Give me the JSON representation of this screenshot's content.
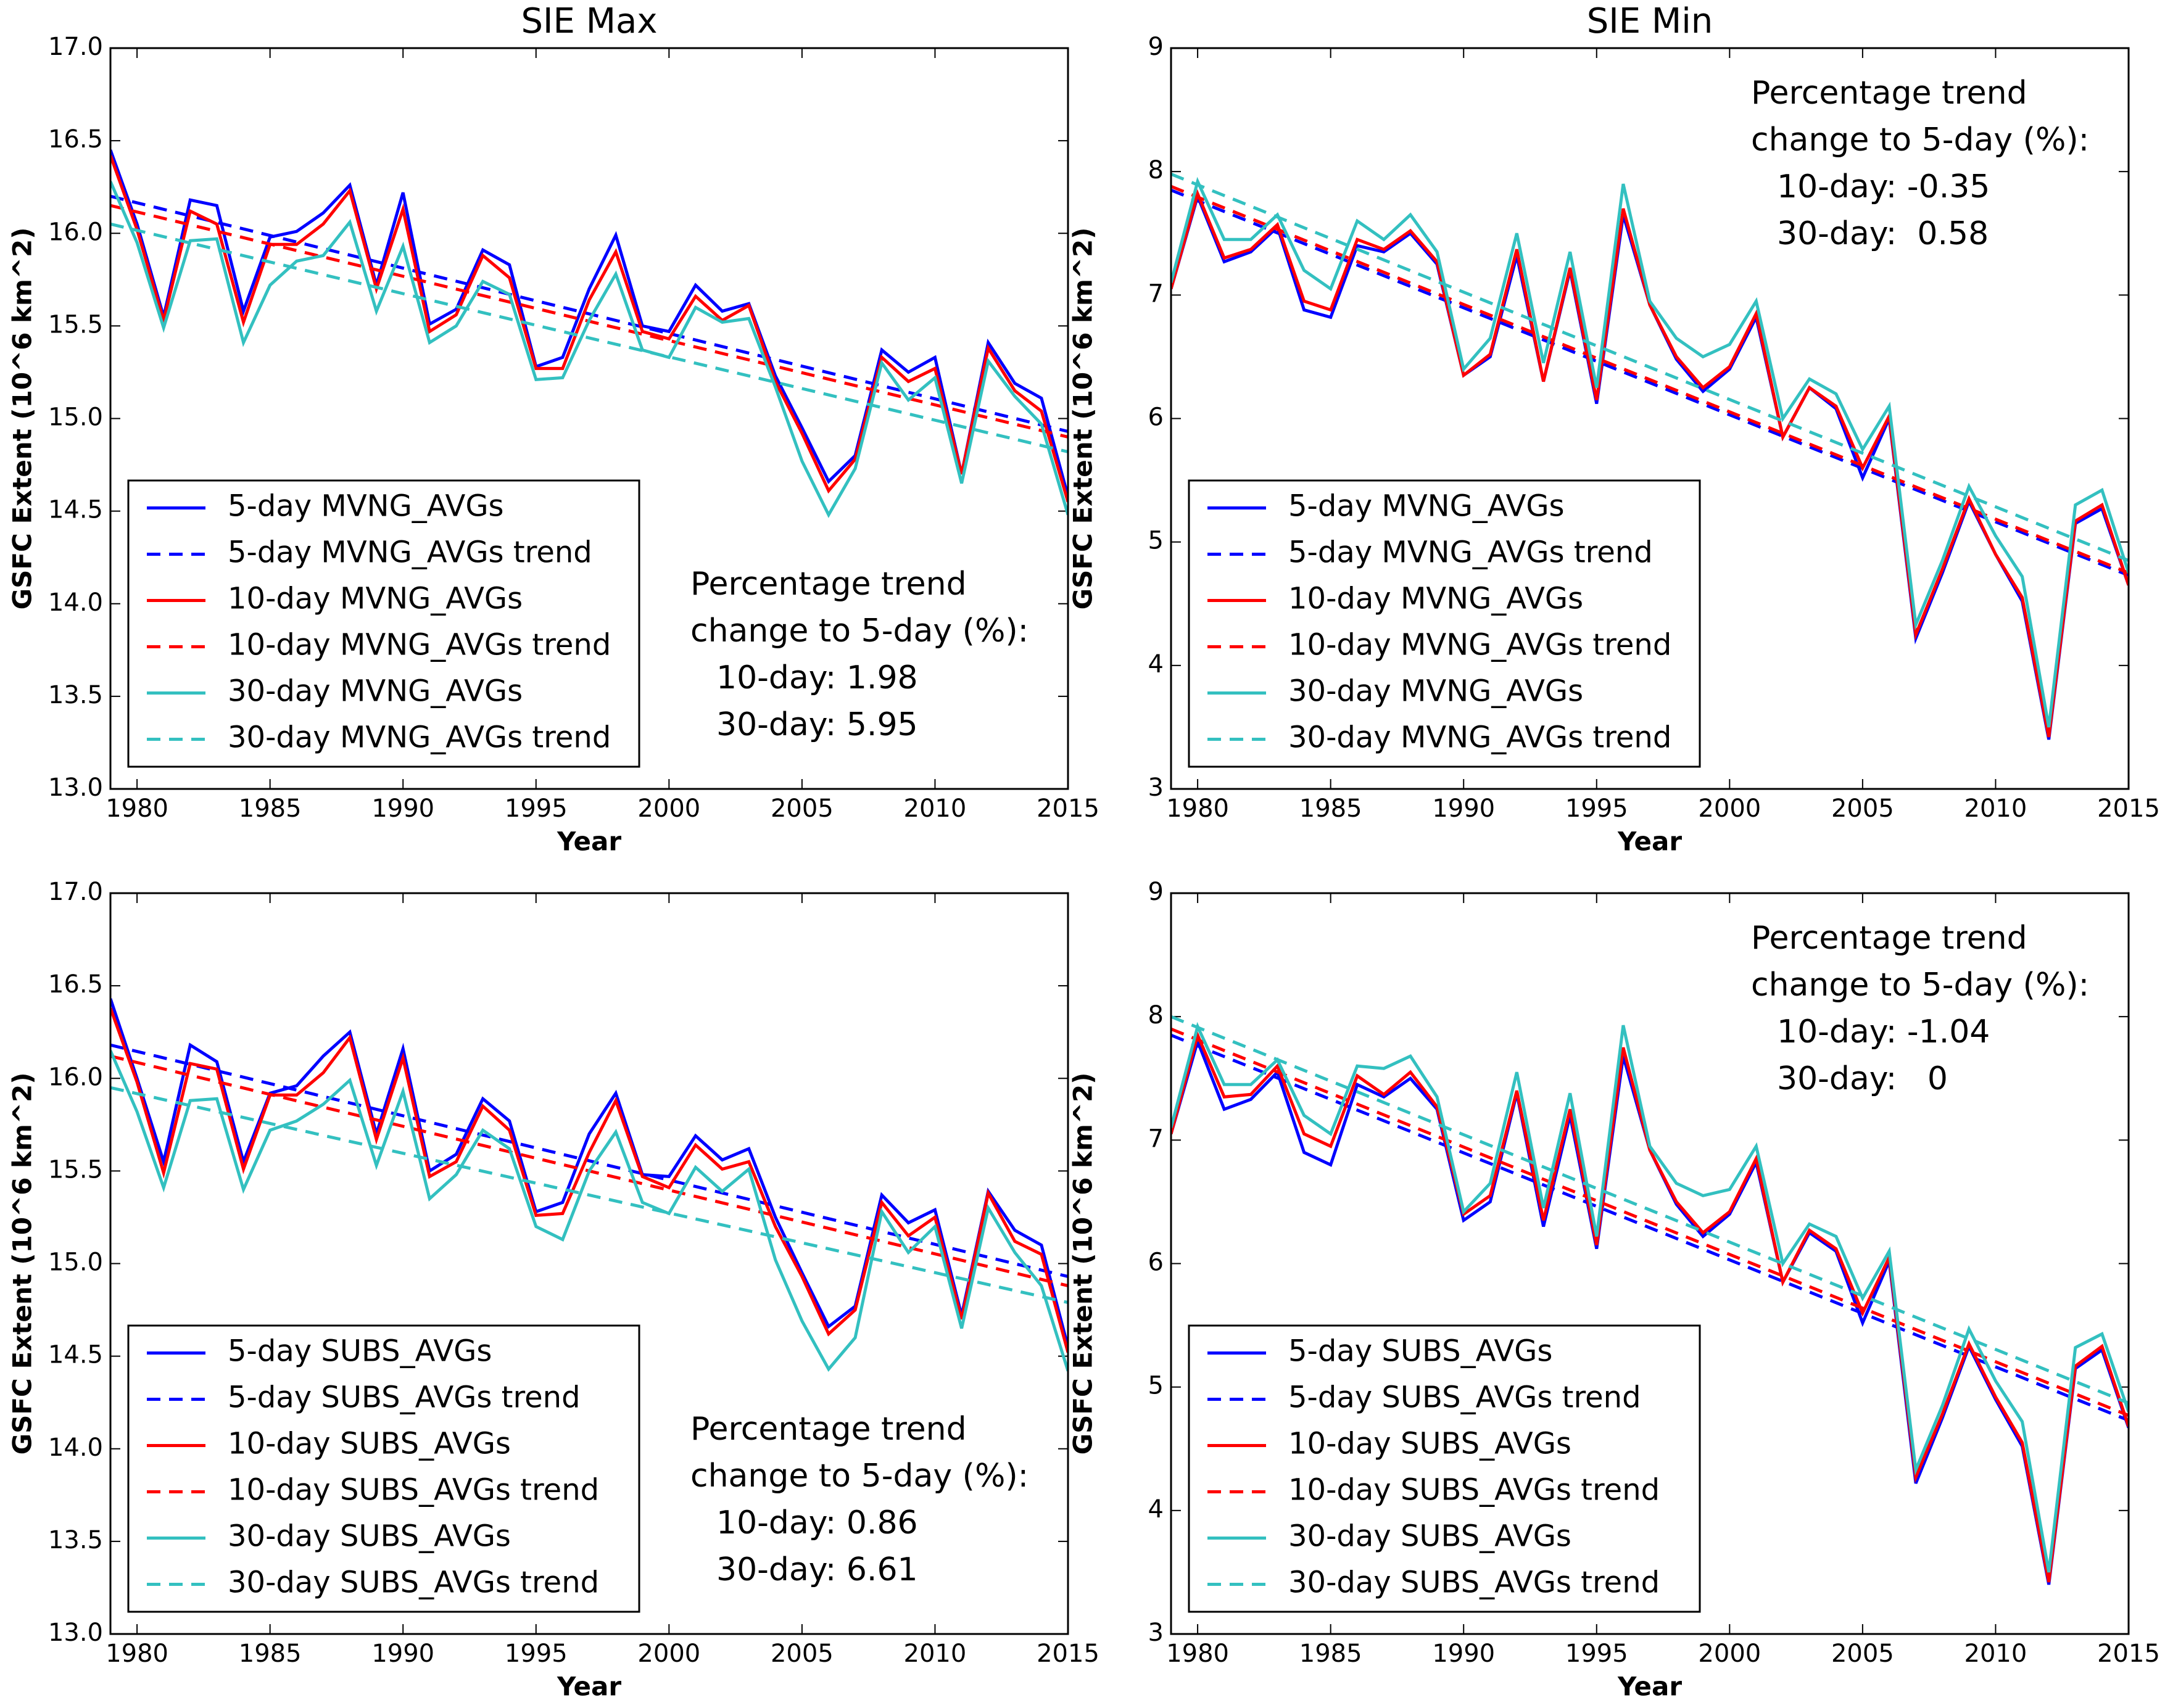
{
  "chart_data": [
    {
      "type": "line",
      "title": "SIE Max",
      "xlabel": "Year",
      "ylabel": "GSFC Extent (10^6 km^2)",
      "x": [
        1979,
        1980,
        1981,
        1982,
        1983,
        1984,
        1985,
        1986,
        1987,
        1988,
        1989,
        1990,
        1991,
        1992,
        1993,
        1994,
        1995,
        1996,
        1997,
        1998,
        1999,
        2000,
        2001,
        2002,
        2003,
        2004,
        2005,
        2006,
        2007,
        2008,
        2009,
        2010,
        2011,
        2012,
        2013,
        2014,
        2015
      ],
      "xlim": [
        1979,
        2015
      ],
      "xticks": [
        1980,
        1985,
        1990,
        1995,
        2000,
        2005,
        2010,
        2015
      ],
      "ylim": [
        13,
        17
      ],
      "yticks": [
        {
          "value": 13,
          "label": "13.0"
        },
        13.5,
        {
          "value": 14,
          "label": "14.0"
        },
        14.5,
        {
          "value": 15,
          "label": "15.0"
        },
        15.5,
        {
          "value": 16,
          "label": "16.0"
        },
        16.5,
        {
          "value": 17,
          "label": "17.0"
        }
      ],
      "legend": "lower left",
      "annotation_corner": "lower right",
      "annotation": [
        "Percentage trend",
        "change to 5-day (%):",
        "10-day: 1.98",
        "30-day: 5.95"
      ],
      "series": [
        {
          "name": "5-day MVNG_AVGs",
          "color": "#0000ff",
          "style": "solid",
          "values": [
            16.45,
            16.05,
            15.55,
            16.18,
            16.15,
            15.58,
            15.98,
            16.01,
            16.11,
            16.26,
            15.72,
            16.22,
            15.51,
            15.59,
            15.91,
            15.83,
            15.28,
            15.33,
            15.7,
            15.99,
            15.5,
            15.47,
            15.72,
            15.58,
            15.62,
            15.23,
            14.95,
            14.66,
            14.8,
            15.37,
            15.25,
            15.33,
            14.7,
            15.41,
            15.19,
            15.11,
            14.58
          ]
        },
        {
          "name": "5-day MVNG_AVGs trend",
          "color": "#0000ff",
          "style": "dashed",
          "x": [
            1979,
            2015
          ],
          "values": [
            16.2,
            14.93
          ]
        },
        {
          "name": "10-day MVNG_AVGs",
          "color": "#ff0000",
          "style": "solid",
          "values": [
            16.42,
            16.02,
            15.53,
            16.12,
            16.05,
            15.52,
            15.94,
            15.94,
            16.05,
            16.23,
            15.7,
            16.13,
            15.47,
            15.56,
            15.88,
            15.76,
            15.27,
            15.27,
            15.64,
            15.9,
            15.47,
            15.43,
            15.66,
            15.53,
            15.61,
            15.2,
            14.92,
            14.61,
            14.78,
            15.33,
            15.2,
            15.27,
            14.7,
            15.38,
            15.15,
            15.04,
            14.55
          ]
        },
        {
          "name": "10-day MVNG_AVGs trend",
          "color": "#ff0000",
          "style": "dashed",
          "x": [
            1979,
            2015
          ],
          "values": [
            16.15,
            14.9
          ]
        },
        {
          "name": "30-day MVNG_AVGs",
          "color": "#33c0c0",
          "style": "solid",
          "values": [
            16.28,
            15.95,
            15.49,
            15.96,
            15.97,
            15.41,
            15.72,
            15.85,
            15.88,
            16.06,
            15.58,
            15.93,
            15.41,
            15.5,
            15.74,
            15.67,
            15.21,
            15.22,
            15.53,
            15.78,
            15.37,
            15.33,
            15.6,
            15.52,
            15.54,
            15.17,
            14.77,
            14.48,
            14.73,
            15.3,
            15.1,
            15.22,
            14.65,
            15.31,
            15.12,
            14.97,
            14.48
          ]
        },
        {
          "name": "30-day MVNG_AVGs trend",
          "color": "#33c0c0",
          "style": "dashed",
          "x": [
            1979,
            2015
          ],
          "values": [
            16.05,
            14.82
          ]
        }
      ]
    },
    {
      "type": "line",
      "title": "SIE Min",
      "xlabel": "Year",
      "ylabel": "GSFC Extent (10^6 km^2)",
      "x": [
        1979,
        1980,
        1981,
        1982,
        1983,
        1984,
        1985,
        1986,
        1987,
        1988,
        1989,
        1990,
        1991,
        1992,
        1993,
        1994,
        1995,
        1996,
        1997,
        1998,
        1999,
        2000,
        2001,
        2002,
        2003,
        2004,
        2005,
        2006,
        2007,
        2008,
        2009,
        2010,
        2011,
        2012,
        2013,
        2014,
        2015
      ],
      "xlim": [
        1979,
        2015
      ],
      "xticks": [
        1980,
        1985,
        1990,
        1995,
        2000,
        2005,
        2010,
        2015
      ],
      "ylim": [
        3,
        9
      ],
      "yticks": [
        3,
        4,
        5,
        6,
        7,
        8,
        9
      ],
      "legend": "lower left",
      "annotation_corner": "upper right",
      "annotation": [
        "Percentage trend",
        "change to 5-day (%):",
        "10-day: -0.35",
        "30-day:  0.58"
      ],
      "series": [
        {
          "name": "5-day MVNG_AVGs",
          "color": "#0000ff",
          "style": "solid",
          "values": [
            7.05,
            7.8,
            7.27,
            7.35,
            7.55,
            6.88,
            6.82,
            7.4,
            7.35,
            7.5,
            7.25,
            6.35,
            6.5,
            7.32,
            6.3,
            7.2,
            6.12,
            7.65,
            6.92,
            6.48,
            6.22,
            6.4,
            6.82,
            5.85,
            6.25,
            6.08,
            5.52,
            6.0,
            4.22,
            4.75,
            5.33,
            4.9,
            4.52,
            3.4,
            5.15,
            5.27,
            4.65
          ]
        },
        {
          "name": "5-day MVNG_AVGs trend",
          "color": "#0000ff",
          "style": "dashed",
          "x": [
            1979,
            2015
          ],
          "values": [
            7.85,
            4.73
          ]
        },
        {
          "name": "10-day MVNG_AVGs",
          "color": "#ff0000",
          "style": "solid",
          "values": [
            7.05,
            7.82,
            7.3,
            7.37,
            7.57,
            6.95,
            6.88,
            7.45,
            7.37,
            7.52,
            7.27,
            6.35,
            6.52,
            7.37,
            6.3,
            7.22,
            6.15,
            7.7,
            6.92,
            6.5,
            6.25,
            6.42,
            6.85,
            5.85,
            6.25,
            6.1,
            5.6,
            6.02,
            4.25,
            4.78,
            5.35,
            4.9,
            4.55,
            3.42,
            5.17,
            5.3,
            4.65
          ]
        },
        {
          "name": "10-day MVNG_AVGs trend",
          "color": "#ff0000",
          "style": "dashed",
          "x": [
            1979,
            2015
          ],
          "values": [
            7.88,
            4.75
          ]
        },
        {
          "name": "30-day MVNG_AVGs",
          "color": "#33c0c0",
          "style": "solid",
          "values": [
            7.1,
            7.92,
            7.45,
            7.45,
            7.65,
            7.2,
            7.05,
            7.6,
            7.45,
            7.65,
            7.35,
            6.4,
            6.65,
            7.5,
            6.45,
            7.35,
            6.25,
            7.9,
            6.95,
            6.65,
            6.5,
            6.6,
            6.95,
            6.0,
            6.32,
            6.2,
            5.75,
            6.1,
            4.33,
            4.85,
            5.45,
            5.05,
            4.72,
            3.5,
            5.3,
            5.42,
            4.75
          ]
        },
        {
          "name": "30-day MVNG_AVGs trend",
          "color": "#33c0c0",
          "style": "dashed",
          "x": [
            1979,
            2015
          ],
          "values": [
            7.98,
            4.85
          ]
        }
      ]
    },
    {
      "type": "line",
      "xlabel": "Year",
      "ylabel": "GSFC Extent (10^6 km^2)",
      "x": [
        1979,
        1980,
        1981,
        1982,
        1983,
        1984,
        1985,
        1986,
        1987,
        1988,
        1989,
        1990,
        1991,
        1992,
        1993,
        1994,
        1995,
        1996,
        1997,
        1998,
        1999,
        2000,
        2001,
        2002,
        2003,
        2004,
        2005,
        2006,
        2007,
        2008,
        2009,
        2010,
        2011,
        2012,
        2013,
        2014,
        2015
      ],
      "xlim": [
        1979,
        2015
      ],
      "xticks": [
        1980,
        1985,
        1990,
        1995,
        2000,
        2005,
        2010,
        2015
      ],
      "ylim": [
        13,
        17
      ],
      "yticks": [
        {
          "value": 13,
          "label": "13.0"
        },
        13.5,
        {
          "value": 14,
          "label": "14.0"
        },
        14.5,
        {
          "value": 15,
          "label": "15.0"
        },
        15.5,
        {
          "value": 16,
          "label": "16.0"
        },
        16.5,
        {
          "value": 17,
          "label": "17.0"
        }
      ],
      "legend": "lower left",
      "annotation_corner": "lower right",
      "annotation": [
        "Percentage trend",
        "change to 5-day (%):",
        "10-day: 0.86",
        "30-day: 6.61"
      ],
      "series": [
        {
          "name": "5-day SUBS_AVGs",
          "color": "#0000ff",
          "style": "solid",
          "values": [
            16.43,
            16.0,
            15.55,
            16.18,
            16.09,
            15.55,
            15.92,
            15.96,
            16.12,
            16.25,
            15.7,
            16.16,
            15.5,
            15.59,
            15.89,
            15.77,
            15.28,
            15.33,
            15.7,
            15.92,
            15.48,
            15.47,
            15.69,
            15.56,
            15.62,
            15.25,
            14.95,
            14.66,
            14.77,
            15.37,
            15.22,
            15.29,
            14.72,
            15.39,
            15.18,
            15.1,
            14.55
          ]
        },
        {
          "name": "5-day SUBS_AVGs trend",
          "color": "#0000ff",
          "style": "dashed",
          "x": [
            1979,
            2015
          ],
          "values": [
            16.18,
            14.93
          ]
        },
        {
          "name": "10-day SUBS_AVGs",
          "color": "#ff0000",
          "style": "solid",
          "values": [
            16.38,
            15.98,
            15.49,
            16.08,
            16.05,
            15.51,
            15.91,
            15.91,
            16.03,
            16.22,
            15.67,
            16.11,
            15.47,
            15.55,
            15.85,
            15.72,
            15.26,
            15.27,
            15.6,
            15.88,
            15.47,
            15.41,
            15.64,
            15.51,
            15.55,
            15.2,
            14.93,
            14.62,
            14.75,
            15.33,
            15.15,
            15.25,
            14.7,
            15.38,
            15.12,
            15.05,
            14.52
          ]
        },
        {
          "name": "10-day SUBS_AVGs trend",
          "color": "#ff0000",
          "style": "dashed",
          "x": [
            1979,
            2015
          ],
          "values": [
            16.12,
            14.88
          ]
        },
        {
          "name": "30-day SUBS_AVGs",
          "color": "#33c0c0",
          "style": "solid",
          "values": [
            16.15,
            15.82,
            15.41,
            15.88,
            15.89,
            15.4,
            15.72,
            15.77,
            15.86,
            15.99,
            15.53,
            15.93,
            15.35,
            15.48,
            15.72,
            15.62,
            15.2,
            15.13,
            15.5,
            15.71,
            15.33,
            15.27,
            15.52,
            15.39,
            15.51,
            15.02,
            14.69,
            14.43,
            14.6,
            15.28,
            15.06,
            15.2,
            14.65,
            15.3,
            15.06,
            14.88,
            14.42
          ]
        },
        {
          "name": "30-day SUBS_AVGs trend",
          "color": "#33c0c0",
          "style": "dashed",
          "x": [
            1979,
            2015
          ],
          "values": [
            15.95,
            14.79
          ]
        }
      ]
    },
    {
      "type": "line",
      "xlabel": "Year",
      "ylabel": "GSFC Extent (10^6 km^2)",
      "x": [
        1979,
        1980,
        1981,
        1982,
        1983,
        1984,
        1985,
        1986,
        1987,
        1988,
        1989,
        1990,
        1991,
        1992,
        1993,
        1994,
        1995,
        1996,
        1997,
        1998,
        1999,
        2000,
        2001,
        2002,
        2003,
        2004,
        2005,
        2006,
        2007,
        2008,
        2009,
        2010,
        2011,
        2012,
        2013,
        2014,
        2015
      ],
      "xlim": [
        1979,
        2015
      ],
      "xticks": [
        1980,
        1985,
        1990,
        1995,
        2000,
        2005,
        2010,
        2015
      ],
      "ylim": [
        3,
        9
      ],
      "yticks": [
        3,
        4,
        5,
        6,
        7,
        8,
        9
      ],
      "legend": "lower left",
      "annotation_corner": "upper right",
      "annotation": [
        "Percentage trend",
        "change to 5-day (%):",
        "10-day: -1.04",
        "30-day:   0"
      ],
      "series": [
        {
          "name": "5-day SUBS_AVGs",
          "color": "#0000ff",
          "style": "solid",
          "values": [
            7.05,
            7.8,
            7.25,
            7.33,
            7.55,
            6.9,
            6.8,
            7.45,
            7.35,
            7.5,
            7.25,
            6.35,
            6.5,
            7.38,
            6.3,
            7.2,
            6.12,
            7.68,
            6.92,
            6.48,
            6.22,
            6.4,
            6.82,
            5.85,
            6.25,
            6.1,
            5.52,
            6.02,
            4.22,
            4.75,
            5.33,
            4.9,
            4.52,
            3.4,
            5.15,
            5.3,
            4.67
          ]
        },
        {
          "name": "5-day SUBS_AVGs trend",
          "color": "#0000ff",
          "style": "dashed",
          "x": [
            1979,
            2015
          ],
          "values": [
            7.85,
            4.73
          ]
        },
        {
          "name": "10-day SUBS_AVGs",
          "color": "#ff0000",
          "style": "solid",
          "values": [
            7.05,
            7.85,
            7.35,
            7.37,
            7.6,
            7.05,
            6.95,
            7.52,
            7.37,
            7.55,
            7.27,
            6.4,
            6.55,
            7.4,
            6.35,
            7.25,
            6.15,
            7.75,
            6.92,
            6.5,
            6.25,
            6.42,
            6.85,
            5.85,
            6.27,
            6.12,
            5.6,
            6.05,
            4.27,
            4.78,
            5.35,
            4.92,
            4.55,
            3.42,
            5.17,
            5.33,
            4.68
          ]
        },
        {
          "name": "10-day SUBS_AVGs trend",
          "color": "#ff0000",
          "style": "dashed",
          "x": [
            1979,
            2015
          ],
          "values": [
            7.9,
            4.77
          ]
        },
        {
          "name": "30-day SUBS_AVGs",
          "color": "#33c0c0",
          "style": "solid",
          "values": [
            7.1,
            7.92,
            7.45,
            7.45,
            7.65,
            7.2,
            7.05,
            7.6,
            7.58,
            7.68,
            7.35,
            6.42,
            6.65,
            7.55,
            6.45,
            7.38,
            6.22,
            7.93,
            6.95,
            6.65,
            6.55,
            6.6,
            6.95,
            6.0,
            6.32,
            6.22,
            5.72,
            6.1,
            4.33,
            4.85,
            5.47,
            5.05,
            4.72,
            3.5,
            5.32,
            5.43,
            4.8
          ]
        },
        {
          "name": "30-day SUBS_AVGs trend",
          "color": "#33c0c0",
          "style": "dashed",
          "x": [
            1979,
            2015
          ],
          "values": [
            8.0,
            4.87
          ]
        }
      ]
    }
  ]
}
